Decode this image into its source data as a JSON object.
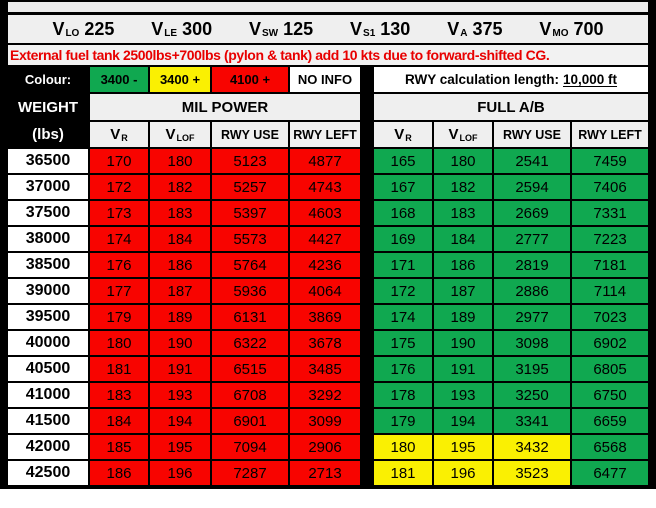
{
  "colors": {
    "green": "#10A850",
    "yellow": "#FAF002",
    "red": "#F80400",
    "white": "#FFFFFF",
    "header_gray": "#EFEFEF",
    "warning_red": "#E80000"
  },
  "vspeeds": [
    {
      "name": "V",
      "sub": "LO",
      "value": "225"
    },
    {
      "name": "V",
      "sub": "LE",
      "value": "300"
    },
    {
      "name": "V",
      "sub": "SW",
      "value": "125"
    },
    {
      "name": "V",
      "sub": "S1",
      "value": "130"
    },
    {
      "name": "V",
      "sub": "A",
      "value": "375"
    },
    {
      "name": "V",
      "sub": "MO",
      "value": "700"
    }
  ],
  "warning": "External fuel tank 2500lbs+700lbs (pylon & tank) add 10 kts due to forward-shifted CG.",
  "legend": {
    "label": "Colour:",
    "items": [
      {
        "text": "3400 -",
        "color": "green"
      },
      {
        "text": "3400 +",
        "color": "yellow"
      },
      {
        "text": "4100 +",
        "color": "red"
      },
      {
        "text": "NO INFO",
        "color": "white"
      }
    ],
    "rwy_text": "RWY calculation length:",
    "rwy_value": "10,000 ft"
  },
  "table": {
    "weight_header": "WEIGHT",
    "weight_unit": "(lbs)",
    "section_mil": "MIL POWER",
    "section_ab": "FULL A/B",
    "columns": [
      {
        "name": "V",
        "sub": "R"
      },
      {
        "name": "V",
        "sub": "LOF"
      },
      {
        "name": "RWY USE",
        "sub": ""
      },
      {
        "name": "RWY LEFT",
        "sub": ""
      }
    ],
    "rows": [
      {
        "weight": "36500",
        "mil": [
          "170",
          "180",
          "5123",
          "4877"
        ],
        "mil_colors": [
          "red",
          "red",
          "red",
          "red"
        ],
        "ab": [
          "165",
          "180",
          "2541",
          "7459"
        ],
        "ab_colors": [
          "green",
          "green",
          "green",
          "green"
        ]
      },
      {
        "weight": "37000",
        "mil": [
          "172",
          "182",
          "5257",
          "4743"
        ],
        "mil_colors": [
          "red",
          "red",
          "red",
          "red"
        ],
        "ab": [
          "167",
          "182",
          "2594",
          "7406"
        ],
        "ab_colors": [
          "green",
          "green",
          "green",
          "green"
        ]
      },
      {
        "weight": "37500",
        "mil": [
          "173",
          "183",
          "5397",
          "4603"
        ],
        "mil_colors": [
          "red",
          "red",
          "red",
          "red"
        ],
        "ab": [
          "168",
          "183",
          "2669",
          "7331"
        ],
        "ab_colors": [
          "green",
          "green",
          "green",
          "green"
        ]
      },
      {
        "weight": "38000",
        "mil": [
          "174",
          "184",
          "5573",
          "4427"
        ],
        "mil_colors": [
          "red",
          "red",
          "red",
          "red"
        ],
        "ab": [
          "169",
          "184",
          "2777",
          "7223"
        ],
        "ab_colors": [
          "green",
          "green",
          "green",
          "green"
        ]
      },
      {
        "weight": "38500",
        "mil": [
          "176",
          "186",
          "5764",
          "4236"
        ],
        "mil_colors": [
          "red",
          "red",
          "red",
          "red"
        ],
        "ab": [
          "171",
          "186",
          "2819",
          "7181"
        ],
        "ab_colors": [
          "green",
          "green",
          "green",
          "green"
        ]
      },
      {
        "weight": "39000",
        "mil": [
          "177",
          "187",
          "5936",
          "4064"
        ],
        "mil_colors": [
          "red",
          "red",
          "red",
          "red"
        ],
        "ab": [
          "172",
          "187",
          "2886",
          "7114"
        ],
        "ab_colors": [
          "green",
          "green",
          "green",
          "green"
        ]
      },
      {
        "weight": "39500",
        "mil": [
          "179",
          "189",
          "6131",
          "3869"
        ],
        "mil_colors": [
          "red",
          "red",
          "red",
          "red"
        ],
        "ab": [
          "174",
          "189",
          "2977",
          "7023"
        ],
        "ab_colors": [
          "green",
          "green",
          "green",
          "green"
        ]
      },
      {
        "weight": "40000",
        "mil": [
          "180",
          "190",
          "6322",
          "3678"
        ],
        "mil_colors": [
          "red",
          "red",
          "red",
          "red"
        ],
        "ab": [
          "175",
          "190",
          "3098",
          "6902"
        ],
        "ab_colors": [
          "green",
          "green",
          "green",
          "green"
        ]
      },
      {
        "weight": "40500",
        "mil": [
          "181",
          "191",
          "6515",
          "3485"
        ],
        "mil_colors": [
          "red",
          "red",
          "red",
          "red"
        ],
        "ab": [
          "176",
          "191",
          "3195",
          "6805"
        ],
        "ab_colors": [
          "green",
          "green",
          "green",
          "green"
        ]
      },
      {
        "weight": "41000",
        "mil": [
          "183",
          "193",
          "6708",
          "3292"
        ],
        "mil_colors": [
          "red",
          "red",
          "red",
          "red"
        ],
        "ab": [
          "178",
          "193",
          "3250",
          "6750"
        ],
        "ab_colors": [
          "green",
          "green",
          "green",
          "green"
        ]
      },
      {
        "weight": "41500",
        "mil": [
          "184",
          "194",
          "6901",
          "3099"
        ],
        "mil_colors": [
          "red",
          "red",
          "red",
          "red"
        ],
        "ab": [
          "179",
          "194",
          "3341",
          "6659"
        ],
        "ab_colors": [
          "green",
          "green",
          "green",
          "green"
        ]
      },
      {
        "weight": "42000",
        "mil": [
          "185",
          "195",
          "7094",
          "2906"
        ],
        "mil_colors": [
          "red",
          "red",
          "red",
          "red"
        ],
        "ab": [
          "180",
          "195",
          "3432",
          "6568"
        ],
        "ab_colors": [
          "yellow",
          "yellow",
          "yellow",
          "green"
        ]
      },
      {
        "weight": "42500",
        "mil": [
          "186",
          "196",
          "7287",
          "2713"
        ],
        "mil_colors": [
          "red",
          "red",
          "red",
          "red"
        ],
        "ab": [
          "181",
          "196",
          "3523",
          "6477"
        ],
        "ab_colors": [
          "yellow",
          "yellow",
          "yellow",
          "green"
        ]
      }
    ]
  }
}
